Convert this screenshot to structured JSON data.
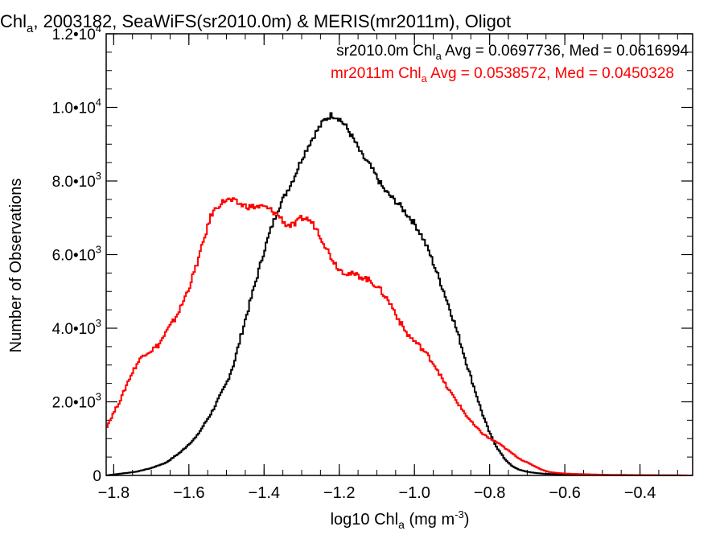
{
  "chart_data": {
    "type": "line",
    "title": {
      "main": "Chl",
      "main_sub": "a",
      "rest": ", 2003182, SeaWiFS(sr2010.0m) & MERIS(mr2011m), Oligot"
    },
    "xlabel": {
      "pre": "log10 Chl",
      "sub": "a",
      "mid": " (mg m",
      "sup": "-3",
      "post": ")"
    },
    "ylabel": "Number of Observations",
    "xlim": [
      -1.82,
      -0.26
    ],
    "ylim": [
      0,
      12000
    ],
    "x_ticks": [
      {
        "v": -1.8,
        "label": "-1.8"
      },
      {
        "v": -1.6,
        "label": "-1.6"
      },
      {
        "v": -1.4,
        "label": "-1.4"
      },
      {
        "v": -1.2,
        "label": "-1.2"
      },
      {
        "v": -1.0,
        "label": "-1.0"
      },
      {
        "v": -0.8,
        "label": "-0.8"
      },
      {
        "v": -0.6,
        "label": "-0.6"
      },
      {
        "v": -0.4,
        "label": "-0.4"
      }
    ],
    "y_ticks": [
      {
        "v": 0,
        "mant": "0",
        "exp": ""
      },
      {
        "v": 2000,
        "mant": "2.0•10",
        "exp": "3"
      },
      {
        "v": 4000,
        "mant": "4.0•10",
        "exp": "3"
      },
      {
        "v": 6000,
        "mant": "6.0•10",
        "exp": "3"
      },
      {
        "v": 8000,
        "mant": "8.0•10",
        "exp": "3"
      },
      {
        "v": 10000,
        "mant": "1.0•10",
        "exp": "4"
      },
      {
        "v": 12000,
        "mant": "1.2•10",
        "exp": "4"
      }
    ],
    "series": [
      {
        "name": "sr2010.0m",
        "color": "#000000",
        "legend": {
          "pre": "sr2010.0m Chl",
          "sub": "a",
          "post": " Avg = 0.0697736, Med = 0.0616994"
        },
        "x": [
          -1.82,
          -1.78,
          -1.74,
          -1.7,
          -1.66,
          -1.62,
          -1.58,
          -1.54,
          -1.5,
          -1.48,
          -1.46,
          -1.44,
          -1.42,
          -1.4,
          -1.38,
          -1.36,
          -1.34,
          -1.32,
          -1.3,
          -1.28,
          -1.26,
          -1.24,
          -1.22,
          -1.2,
          -1.18,
          -1.16,
          -1.14,
          -1.12,
          -1.1,
          -1.08,
          -1.06,
          -1.04,
          -1.02,
          -1.0,
          -0.98,
          -0.96,
          -0.94,
          -0.92,
          -0.9,
          -0.88,
          -0.86,
          -0.84,
          -0.82,
          -0.8,
          -0.78,
          -0.76,
          -0.74,
          -0.72,
          -0.7,
          -0.68,
          -0.66,
          -0.64,
          -0.62,
          -0.6,
          -0.56,
          -0.5,
          -0.4,
          -0.26
        ],
        "y": [
          0,
          50,
          100,
          200,
          350,
          650,
          1050,
          1700,
          2500,
          3050,
          3850,
          4600,
          5350,
          6100,
          6750,
          7300,
          7700,
          8100,
          8600,
          9000,
          9350,
          9650,
          9800,
          9700,
          9450,
          9100,
          8700,
          8450,
          8100,
          7750,
          7550,
          7350,
          7100,
          6850,
          6500,
          6050,
          5500,
          4950,
          4350,
          3700,
          3000,
          2350,
          1700,
          1150,
          750,
          450,
          250,
          150,
          100,
          70,
          50,
          40,
          30,
          20,
          15,
          10,
          5,
          0
        ]
      },
      {
        "name": "mr2011m",
        "color": "#ff0000",
        "legend": {
          "pre": "mr2011m Chl",
          "sub": "a",
          "post": " Avg = 0.0538572, Med = 0.0450328"
        },
        "x": [
          -1.82,
          -1.8,
          -1.78,
          -1.76,
          -1.74,
          -1.72,
          -1.7,
          -1.68,
          -1.66,
          -1.64,
          -1.62,
          -1.6,
          -1.58,
          -1.56,
          -1.54,
          -1.52,
          -1.5,
          -1.48,
          -1.46,
          -1.44,
          -1.42,
          -1.4,
          -1.38,
          -1.36,
          -1.34,
          -1.32,
          -1.3,
          -1.28,
          -1.26,
          -1.24,
          -1.22,
          -1.2,
          -1.18,
          -1.16,
          -1.14,
          -1.12,
          -1.1,
          -1.08,
          -1.06,
          -1.04,
          -1.02,
          -1.0,
          -0.98,
          -0.96,
          -0.94,
          -0.92,
          -0.9,
          -0.88,
          -0.86,
          -0.84,
          -0.82,
          -0.8,
          -0.78,
          -0.76,
          -0.74,
          -0.72,
          -0.7,
          -0.68,
          -0.66,
          -0.64,
          -0.6,
          -0.5,
          -0.4,
          -0.26
        ],
        "y": [
          1300,
          1700,
          2100,
          2600,
          3000,
          3300,
          3400,
          3550,
          3900,
          4200,
          4600,
          5100,
          5700,
          6400,
          7100,
          7350,
          7500,
          7450,
          7350,
          7300,
          7300,
          7300,
          7200,
          7050,
          6800,
          6800,
          7000,
          6950,
          6700,
          6300,
          5900,
          5600,
          5500,
          5450,
          5400,
          5300,
          5150,
          4900,
          4600,
          4200,
          3850,
          3650,
          3450,
          3200,
          2900,
          2500,
          2200,
          1900,
          1600,
          1350,
          1150,
          1000,
          900,
          750,
          600,
          450,
          350,
          250,
          150,
          90,
          50,
          20,
          10,
          0
        ]
      }
    ]
  }
}
